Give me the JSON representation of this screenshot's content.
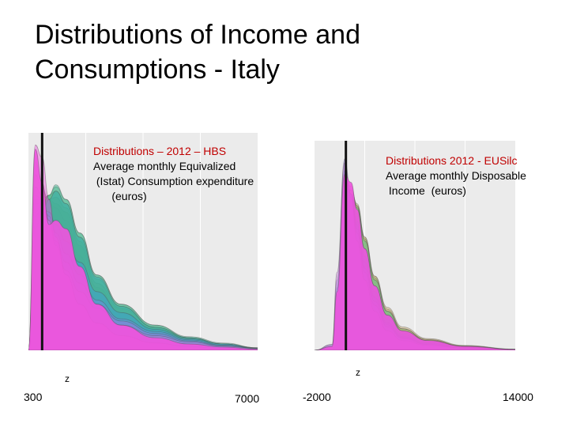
{
  "slide": {
    "title_line1": "Distributions of Income and",
    "title_line2": "Consumptions - Italy"
  },
  "chart_data": [
    {
      "type": "area",
      "title_lines": [
        "Distributions – 2012 – HBS",
        "Average monthly Equivalized",
        " (Istat) Consumption expenditure",
        "      (euros)"
      ],
      "x_range": [
        300,
        7000
      ],
      "x_ticks": [
        "300",
        "7000"
      ],
      "vline_label": "z",
      "z_value": 700,
      "palette": [
        "#ee55dd",
        "#d6a0a0",
        "#c9a86a",
        "#b9b36a",
        "#8fbf7a",
        "#5cbf8a",
        "#33b08a",
        "#2aa6b0",
        "#3f9fd8",
        "#6f8fe0",
        "#9a7fe0",
        "#c07ad8"
      ],
      "series": [
        {
          "x": [
            300,
            500,
            700,
            900,
            1100,
            1400,
            1800,
            2300,
            3000,
            4000,
            5000,
            6000,
            7000
          ],
          "y": [
            0,
            0.96,
            0.8,
            0.6,
            0.62,
            0.58,
            0.4,
            0.22,
            0.12,
            0.06,
            0.03,
            0.015,
            0.005
          ]
        },
        {
          "x": [
            300,
            500,
            700,
            900,
            1100,
            1400,
            1800,
            2300,
            3000,
            4000,
            5000,
            6000,
            7000
          ],
          "y": [
            0,
            0.9,
            0.78,
            0.7,
            0.68,
            0.62,
            0.45,
            0.25,
            0.14,
            0.07,
            0.035,
            0.018,
            0.006
          ]
        },
        {
          "x": [
            300,
            500,
            700,
            900,
            1100,
            1400,
            1800,
            2300,
            3000,
            4000,
            5000,
            6000,
            7000
          ],
          "y": [
            0,
            0.84,
            0.76,
            0.72,
            0.7,
            0.66,
            0.5,
            0.3,
            0.18,
            0.1,
            0.06,
            0.03,
            0.01
          ]
        },
        {
          "x": [
            300,
            500,
            700,
            900,
            1100,
            1400,
            1800,
            2300,
            3000,
            4000,
            5000,
            6000,
            7000
          ],
          "y": [
            0,
            0.78,
            0.74,
            0.72,
            0.73,
            0.68,
            0.52,
            0.32,
            0.2,
            0.11,
            0.06,
            0.03,
            0.01
          ]
        },
        {
          "x": [
            300,
            500,
            700,
            900,
            1100,
            1400,
            1800,
            2300,
            3000,
            4000,
            5000,
            6000,
            7000
          ],
          "y": [
            0,
            0.72,
            0.72,
            0.74,
            0.76,
            0.7,
            0.54,
            0.34,
            0.21,
            0.11,
            0.06,
            0.03,
            0.012
          ]
        },
        {
          "x": [
            300,
            500,
            700,
            900,
            1100,
            1400,
            1800,
            2300,
            3000,
            4000,
            5000,
            6000,
            7000
          ],
          "y": [
            0,
            0.66,
            0.7,
            0.74,
            0.78,
            0.72,
            0.56,
            0.36,
            0.22,
            0.12,
            0.06,
            0.03,
            0.012
          ]
        },
        {
          "x": [
            300,
            500,
            700,
            900,
            1100,
            1400,
            1800,
            2300,
            3000,
            4000,
            5000,
            6000,
            7000
          ],
          "y": [
            0,
            0.62,
            0.68,
            0.74,
            0.79,
            0.72,
            0.56,
            0.36,
            0.22,
            0.12,
            0.065,
            0.035,
            0.012
          ]
        },
        {
          "x": [
            300,
            500,
            700,
            900,
            1100,
            1400,
            1800,
            2300,
            3000,
            4000,
            5000,
            6000,
            7000
          ],
          "y": [
            0,
            0.58,
            0.66,
            0.72,
            0.76,
            0.7,
            0.54,
            0.35,
            0.21,
            0.11,
            0.06,
            0.03,
            0.01
          ]
        },
        {
          "x": [
            300,
            500,
            700,
            900,
            1100,
            1400,
            1800,
            2300,
            3000,
            4000,
            5000,
            6000,
            7000
          ],
          "y": [
            0,
            0.64,
            0.68,
            0.66,
            0.6,
            0.52,
            0.42,
            0.28,
            0.18,
            0.1,
            0.055,
            0.03,
            0.01
          ]
        },
        {
          "x": [
            300,
            500,
            700,
            900,
            1100,
            1400,
            1800,
            2300,
            3000,
            4000,
            5000,
            6000,
            7000
          ],
          "y": [
            0,
            0.7,
            0.7,
            0.64,
            0.56,
            0.46,
            0.36,
            0.24,
            0.15,
            0.09,
            0.05,
            0.025,
            0.01
          ]
        },
        {
          "x": [
            300,
            500,
            700,
            900,
            1100,
            1400,
            1800,
            2300,
            3000,
            4000,
            5000,
            6000,
            7000
          ],
          "y": [
            0,
            0.74,
            0.72,
            0.62,
            0.52,
            0.42,
            0.32,
            0.22,
            0.14,
            0.08,
            0.045,
            0.022,
            0.008
          ]
        },
        {
          "x": [
            300,
            500,
            700,
            900,
            1100,
            1400,
            1800,
            2300,
            3000,
            4000,
            5000,
            6000,
            7000
          ],
          "y": [
            0,
            0.78,
            0.74,
            0.62,
            0.5,
            0.38,
            0.28,
            0.2,
            0.12,
            0.07,
            0.04,
            0.02,
            0.008
          ]
        },
        {
          "x": [
            300,
            500,
            700,
            900,
            1100,
            1400,
            1800,
            2300,
            3000,
            4000,
            5000,
            6000,
            7000
          ],
          "y": [
            0,
            0.98,
            0.92,
            0.72,
            0.54,
            0.36,
            0.22,
            0.13,
            0.07,
            0.035,
            0.018,
            0.009,
            0.004
          ]
        }
      ]
    },
    {
      "type": "area",
      "title_lines": [
        "Distributions 2012 - EUSilc",
        "Average monthly Disposable",
        " Income  (euros)"
      ],
      "x_range": [
        -2000,
        14000
      ],
      "x_ticks": [
        "-2000",
        "14000"
      ],
      "vline_label": "z",
      "z_value": 500,
      "palette": [
        "#ee55dd",
        "#d6a0a0",
        "#c9a86a",
        "#b9b36a",
        "#8fbf7a",
        "#5cbf8a",
        "#33b08a",
        "#2aa6b0",
        "#3f9fd8",
        "#6f8fe0",
        "#9a7fe0",
        "#c07ad8"
      ],
      "series": [
        {
          "x": [
            -2000,
            -600,
            -200,
            400,
            900,
            1400,
            2000,
            2800,
            3800,
            5000,
            7000,
            10000,
            14000
          ],
          "y": [
            0,
            0.02,
            0.3,
            0.9,
            0.86,
            0.72,
            0.52,
            0.33,
            0.18,
            0.1,
            0.05,
            0.02,
            0.004
          ]
        },
        {
          "x": [
            -2000,
            -600,
            -200,
            400,
            900,
            1400,
            2000,
            2800,
            3800,
            5000,
            7000,
            10000,
            14000
          ],
          "y": [
            0,
            0.02,
            0.28,
            0.86,
            0.84,
            0.74,
            0.56,
            0.36,
            0.2,
            0.11,
            0.055,
            0.022,
            0.005
          ]
        },
        {
          "x": [
            -2000,
            -600,
            -200,
            400,
            900,
            1400,
            2000,
            2800,
            3800,
            5000,
            7000,
            10000,
            14000
          ],
          "y": [
            0,
            0.02,
            0.26,
            0.82,
            0.82,
            0.74,
            0.58,
            0.38,
            0.22,
            0.12,
            0.06,
            0.025,
            0.006
          ]
        },
        {
          "x": [
            -2000,
            -600,
            -200,
            400,
            900,
            1400,
            2000,
            2800,
            3800,
            5000,
            7000,
            10000,
            14000
          ],
          "y": [
            0,
            0.02,
            0.26,
            0.8,
            0.82,
            0.75,
            0.58,
            0.38,
            0.21,
            0.11,
            0.055,
            0.022,
            0.005
          ]
        },
        {
          "x": [
            -2000,
            -600,
            -200,
            400,
            900,
            1400,
            2000,
            2800,
            3800,
            5000,
            7000,
            10000,
            14000
          ],
          "y": [
            0,
            0.02,
            0.25,
            0.78,
            0.8,
            0.74,
            0.57,
            0.37,
            0.2,
            0.11,
            0.05,
            0.02,
            0.005
          ]
        },
        {
          "x": [
            -2000,
            -600,
            -200,
            400,
            900,
            1400,
            2000,
            2800,
            3800,
            5000,
            7000,
            10000,
            14000
          ],
          "y": [
            0,
            0.02,
            0.24,
            0.76,
            0.8,
            0.73,
            0.56,
            0.36,
            0.2,
            0.1,
            0.05,
            0.02,
            0.005
          ]
        },
        {
          "x": [
            -2000,
            -600,
            -200,
            400,
            900,
            1400,
            2000,
            2800,
            3800,
            5000,
            7000,
            10000,
            14000
          ],
          "y": [
            0,
            0.02,
            0.26,
            0.8,
            0.8,
            0.7,
            0.52,
            0.33,
            0.18,
            0.09,
            0.045,
            0.018,
            0.004
          ]
        },
        {
          "x": [
            -2000,
            -600,
            -200,
            400,
            900,
            1400,
            2000,
            2800,
            3800,
            5000,
            7000,
            10000,
            14000
          ],
          "y": [
            0,
            0.02,
            0.28,
            0.84,
            0.8,
            0.66,
            0.48,
            0.3,
            0.16,
            0.08,
            0.04,
            0.016,
            0.004
          ]
        },
        {
          "x": [
            -2000,
            -600,
            -200,
            400,
            900,
            1400,
            2000,
            2800,
            3800,
            5000,
            7000,
            10000,
            14000
          ],
          "y": [
            0,
            0.02,
            0.3,
            0.88,
            0.8,
            0.64,
            0.45,
            0.27,
            0.14,
            0.07,
            0.035,
            0.014,
            0.003
          ]
        },
        {
          "x": [
            -2000,
            -600,
            -200,
            400,
            900,
            1400,
            2000,
            2800,
            3800,
            5000,
            7000,
            10000,
            14000
          ],
          "y": [
            0,
            0.02,
            0.32,
            0.92,
            0.8,
            0.62,
            0.42,
            0.25,
            0.13,
            0.065,
            0.03,
            0.012,
            0.003
          ]
        },
        {
          "x": [
            -2000,
            -600,
            -200,
            400,
            900,
            1400,
            2000,
            2800,
            3800,
            5000,
            7000,
            10000,
            14000
          ],
          "y": [
            0,
            0.03,
            0.36,
            0.98,
            0.8,
            0.6,
            0.4,
            0.23,
            0.12,
            0.06,
            0.03,
            0.012,
            0.003
          ]
        },
        {
          "x": [
            -2000,
            -600,
            -200,
            400,
            900,
            1400,
            2000,
            2800,
            3800,
            5000,
            7000,
            10000,
            14000
          ],
          "y": [
            0,
            0.03,
            0.4,
            0.96,
            0.78,
            0.56,
            0.36,
            0.2,
            0.1,
            0.05,
            0.025,
            0.01,
            0.003
          ]
        }
      ]
    }
  ]
}
